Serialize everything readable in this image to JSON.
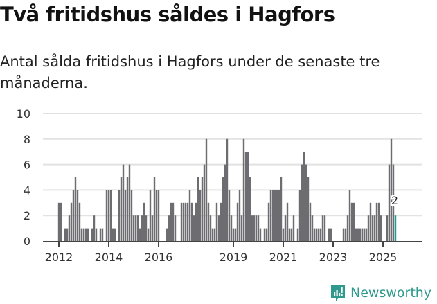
{
  "title": "Två fritidshus såldes i Hagfors",
  "subtitle": "Antal sålda fritidshus i Hagfors under de senaste tre månaderna.",
  "brand": {
    "name": "Newsworthy",
    "color": "#2e9a8e"
  },
  "colors": {
    "bar": "#6d6c71",
    "highlight": "#1a9c94",
    "grid": "#e2e2e2",
    "axis": "#444444"
  },
  "chart_data": {
    "type": "bar",
    "title": "Två fritidshus såldes i Hagfors",
    "subtitle": "Antal sålda fritidshus i Hagfors under de senaste tre månaderna.",
    "xlabel": "",
    "ylabel": "",
    "ylim": [
      0,
      10
    ],
    "yticks": [
      0,
      2,
      4,
      6,
      8,
      10
    ],
    "xtick_labels": [
      "2012",
      "2014",
      "2016",
      "2019",
      "2021",
      "2023",
      "2025"
    ],
    "grid": true,
    "legend": null,
    "annotation": {
      "label": "2",
      "note": "latest value highlighted"
    },
    "start": "2012-01",
    "frequency": "monthly",
    "values": [
      3,
      3,
      0,
      1,
      1,
      2,
      3,
      4,
      5,
      4,
      3,
      1,
      1,
      1,
      1,
      0,
      1,
      2,
      1,
      0,
      1,
      1,
      0,
      4,
      4,
      4,
      1,
      1,
      0,
      4,
      5,
      6,
      4,
      5,
      6,
      4,
      2,
      2,
      2,
      1,
      2,
      3,
      2,
      1,
      4,
      2,
      5,
      4,
      4,
      0,
      0,
      0,
      1,
      2,
      3,
      3,
      2,
      0,
      0,
      3,
      3,
      3,
      3,
      4,
      3,
      2,
      3,
      5,
      4,
      5,
      6,
      8,
      3,
      2,
      1,
      1,
      3,
      2,
      3,
      5,
      6,
      8,
      4,
      2,
      1,
      1,
      3,
      4,
      2,
      8,
      7,
      7,
      5,
      2,
      2,
      2,
      2,
      1,
      0,
      1,
      1,
      3,
      4,
      4,
      4,
      4,
      4,
      5,
      1,
      2,
      3,
      1,
      1,
      2,
      0,
      1,
      4,
      6,
      7,
      6,
      5,
      3,
      2,
      1,
      1,
      1,
      1,
      2,
      2,
      0,
      1,
      1,
      0,
      0,
      0,
      0,
      0,
      1,
      1,
      2,
      4,
      3,
      3,
      1,
      1,
      1,
      1,
      1,
      1,
      2,
      3,
      2,
      2,
      3,
      3,
      2,
      0,
      0,
      2,
      6,
      8,
      6,
      2
    ],
    "highlight_last": true
  }
}
